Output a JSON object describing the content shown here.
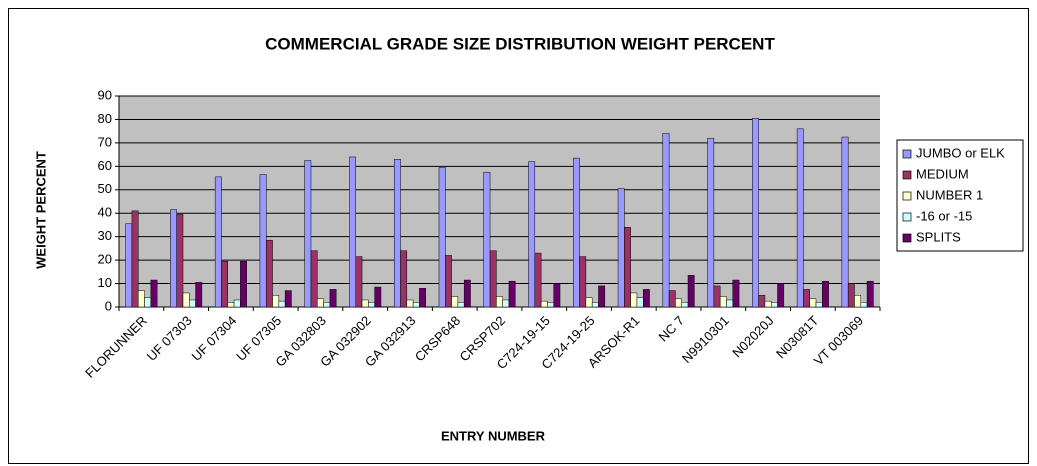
{
  "chart_data": {
    "type": "bar",
    "title": "COMMERCIAL GRADE SIZE DISTRIBUTION WEIGHT PERCENT",
    "x_label": "ENTRY NUMBER",
    "y_label": "WEIGHT PERCENT",
    "categories": [
      "FLORUNNER",
      "UF 07303",
      "UF 07304",
      "UF 07305",
      "GA 032803",
      "GA 032902",
      "GA 032913",
      "CRSP648",
      "CRSP702",
      "C724-19-15",
      "C724-19-25",
      "ARSOK-R1",
      "NC 7",
      "N9910301",
      "N02020J",
      "N03081T",
      "VT 003069"
    ],
    "series": [
      {
        "name": "JUMBO or ELK",
        "color": "#9999ff",
        "values": [
          35.5,
          41.5,
          55.5,
          56.5,
          62.5,
          64,
          63,
          59.5,
          57.5,
          62,
          63.5,
          50.5,
          74,
          72,
          80.5,
          76,
          72.5
        ]
      },
      {
        "name": "MEDIUM",
        "color": "#993366",
        "values": [
          41,
          39.5,
          19.5,
          28.5,
          24,
          21.5,
          24,
          22,
          24,
          23,
          21.5,
          34,
          7,
          9,
          5,
          7.5,
          10
        ]
      },
      {
        "name": "NUMBER 1",
        "color": "#ffffcc",
        "values": [
          7,
          6,
          2,
          5,
          3.5,
          3,
          3,
          4.5,
          4.5,
          2.5,
          4,
          6,
          3.5,
          4.5,
          2.5,
          3.5,
          5
        ]
      },
      {
        "name": "-16 or -15",
        "color": "#ccffff",
        "values": [
          4,
          3,
          3,
          2.5,
          2,
          2,
          2,
          2,
          3,
          2,
          2,
          4,
          2,
          3,
          2,
          2,
          2
        ]
      },
      {
        "name": "SPLITS",
        "color": "#660066",
        "values": [
          11.5,
          10.5,
          19.5,
          7,
          7.5,
          8.5,
          8,
          11.5,
          11,
          10,
          9,
          7.5,
          13.5,
          11.5,
          10,
          11,
          11
        ]
      }
    ],
    "ylim": [
      0,
      90
    ],
    "yticks": [
      0,
      10,
      20,
      30,
      40,
      50,
      60,
      70,
      80,
      90
    ],
    "grid": true,
    "plot_background": "#c0c0c0",
    "legend": "right"
  }
}
